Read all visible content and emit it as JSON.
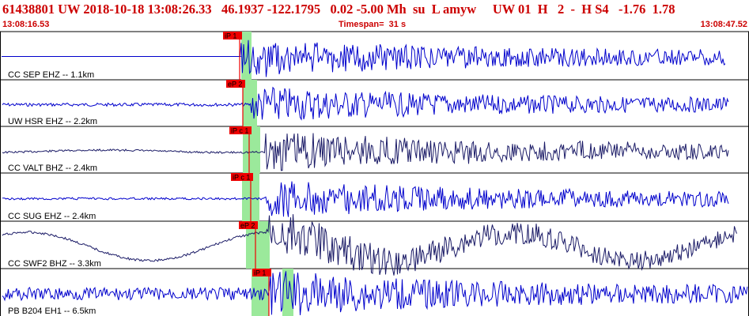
{
  "header": {
    "title": "61438801 UW 2018-10-18 13:08:26.33   46.1937 -122.1795   0.02 -5.00 Mh  su  L amyw     UW 01  H   2  -  H S4   -1.76  1.78",
    "start_time": "13:08:16.53",
    "timespan": "Timespan=  31 s",
    "end_time": "13:08:47.52"
  },
  "colors": {
    "header_text": "#cc0000",
    "trace_blue": "#0000cc",
    "trace_dark": "#1a1a66",
    "pick_box": "#ee0000",
    "pick_line": "#ee0000",
    "window_band": "#9be99b",
    "divider": "#000000",
    "baseline": "#3333ff"
  },
  "traces": [
    {
      "label": "CC SEP EHZ -- 1.1km",
      "pick": "iP 1",
      "color": "#0000cc"
    },
    {
      "label": "UW HSR EHZ -- 2.2km",
      "pick": "eP 2",
      "color": "#0000cc"
    },
    {
      "label": "CC VALT BHZ -- 2.4km",
      "pick": "iP c 1",
      "color": "#1a1a66"
    },
    {
      "label": "CC SUG EHZ -- 2.4km",
      "pick": "iP c 1",
      "color": "#0000cc"
    },
    {
      "label": "CC SWF2 BHZ -- 3.3km",
      "pick": "eP 2",
      "color": "#1a1a66"
    },
    {
      "label": "PB B204 EH1 -- 6.5km",
      "pick": "iP 1",
      "color": "#0000cc"
    }
  ]
}
